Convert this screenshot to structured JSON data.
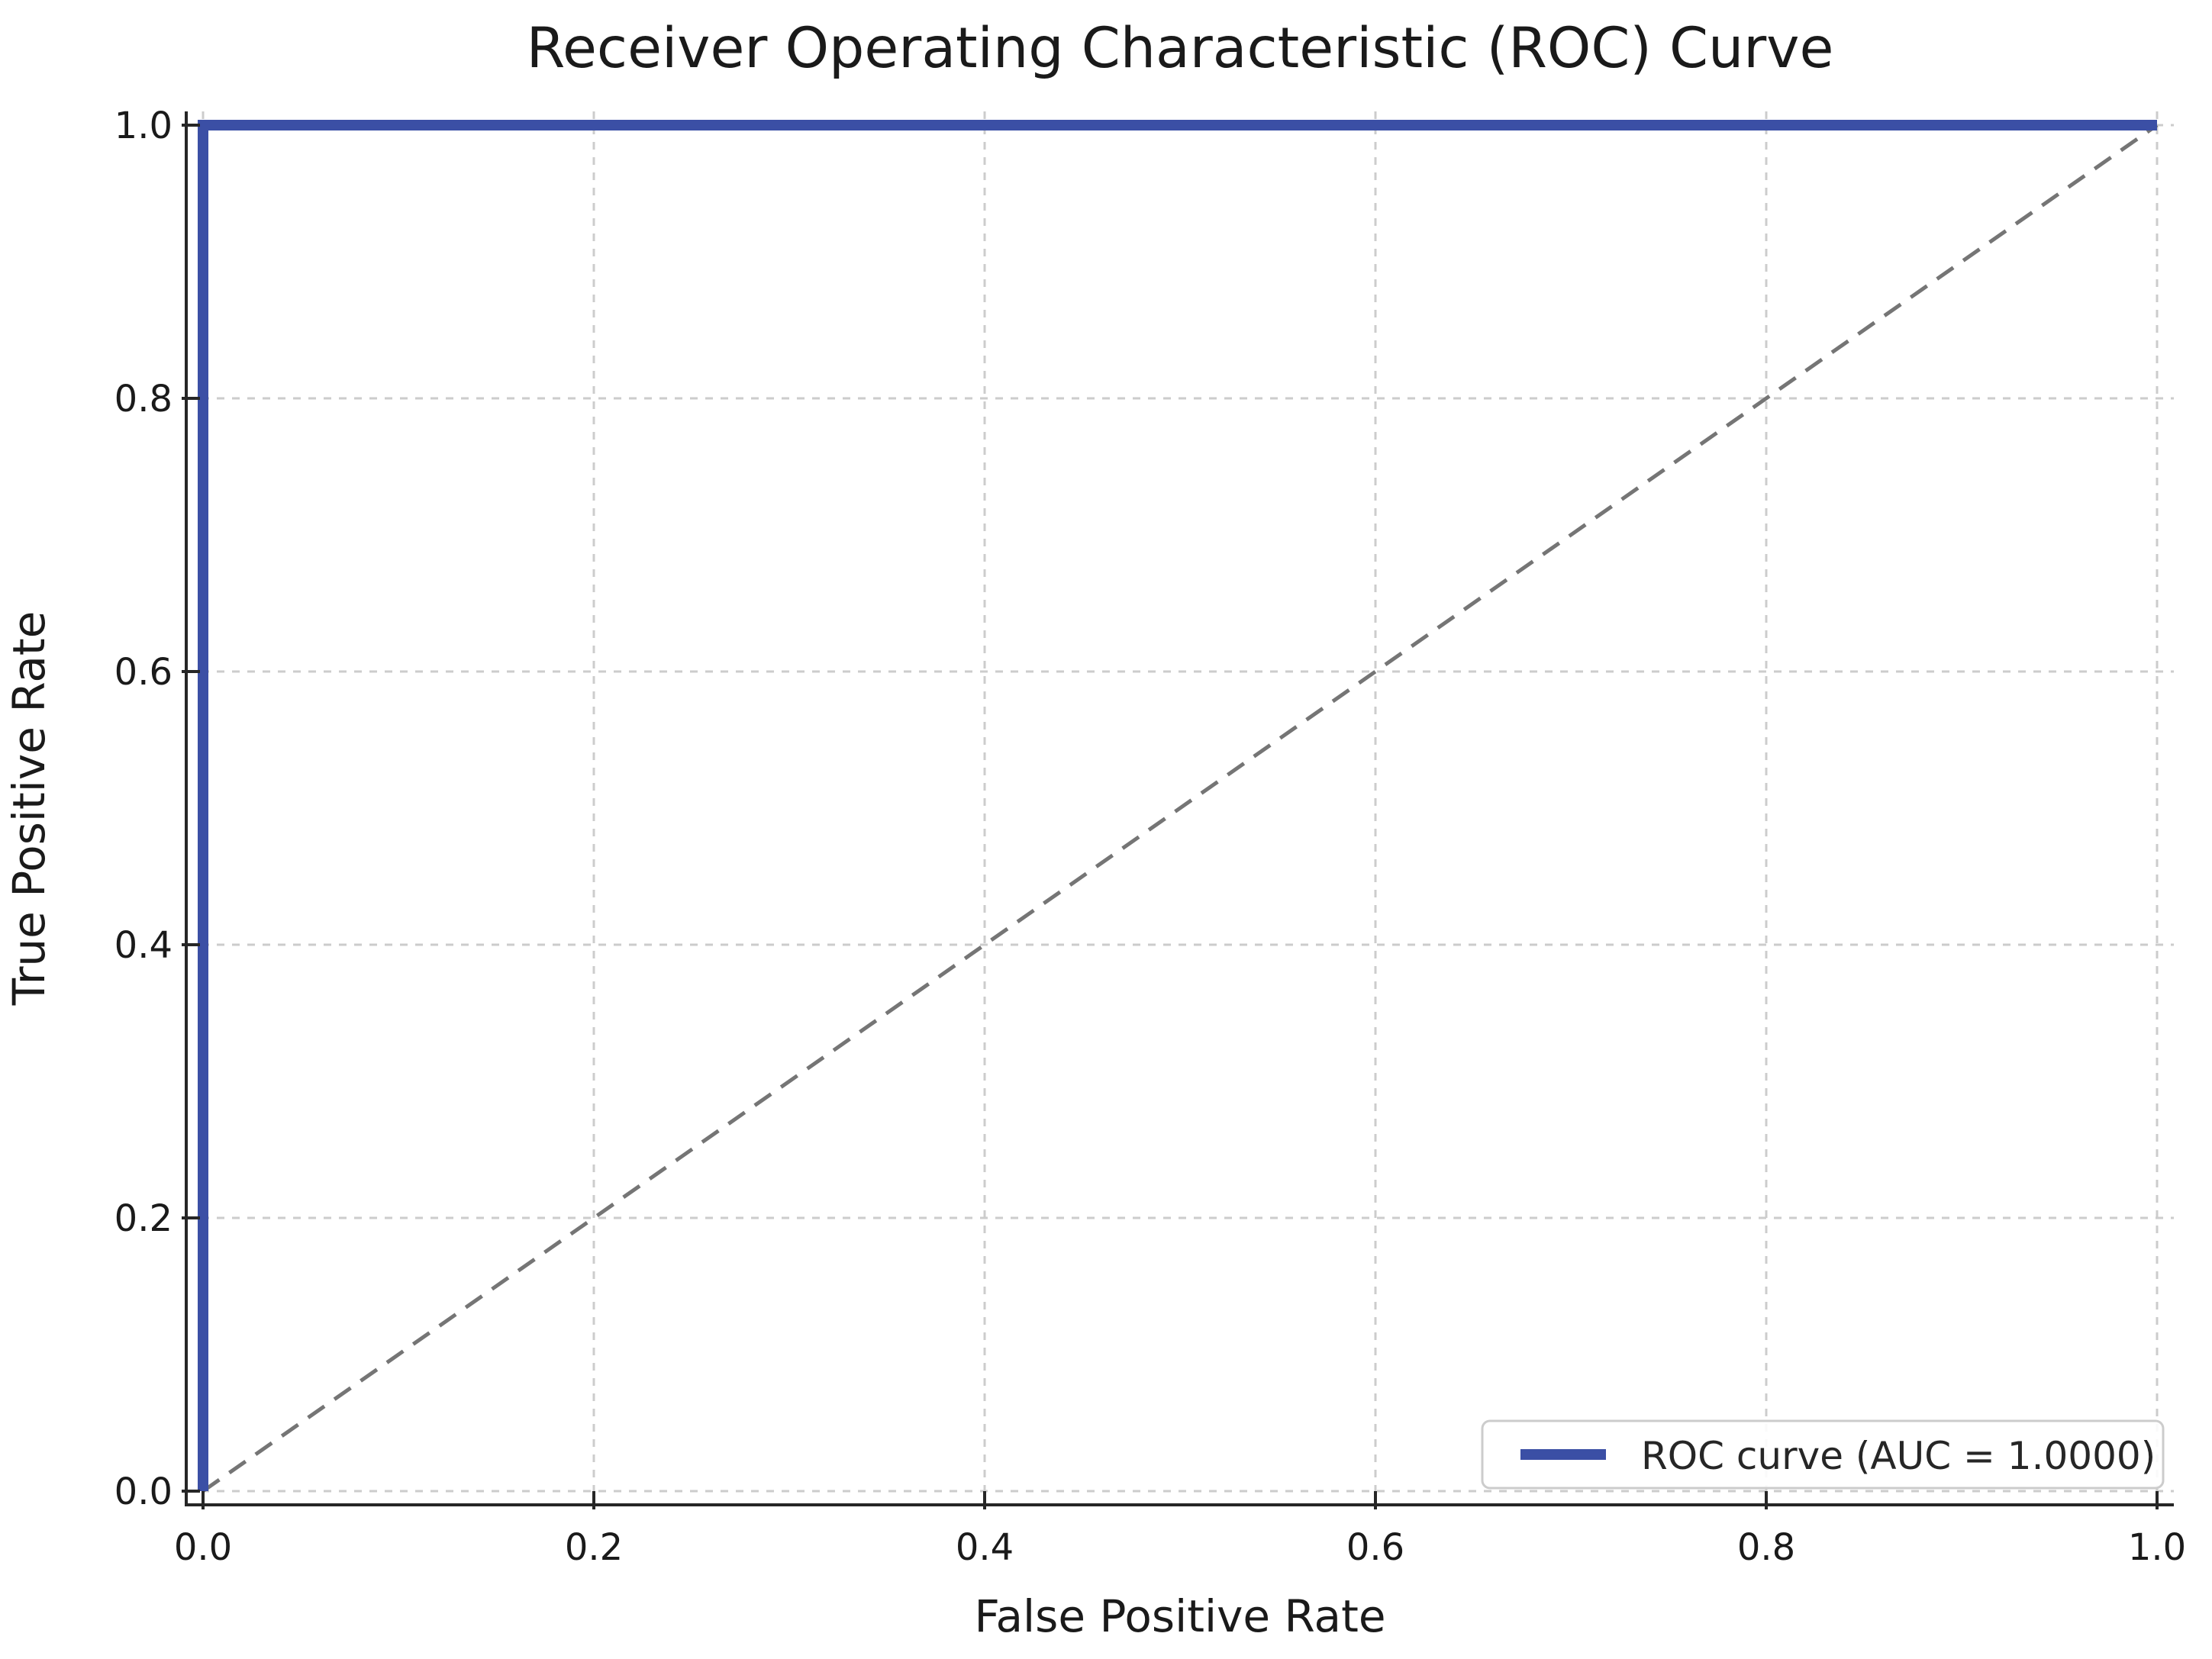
{
  "figure": {
    "title": "Receiver Operating Characteristic (ROC) Curve"
  },
  "chart_data": {
    "type": "line",
    "title": "Receiver Operating Characteristic (ROC) Curve",
    "xlabel": "False Positive Rate",
    "ylabel": "True Positive Rate",
    "xlim": [
      -0.009,
      1.009
    ],
    "ylim": [
      -0.01,
      1.01
    ],
    "grid": true,
    "grid_style": "dashed",
    "x_ticks": [
      0.0,
      0.2,
      0.4,
      0.6,
      0.8,
      1.0
    ],
    "y_ticks": [
      0.0,
      0.2,
      0.4,
      0.6,
      0.8,
      1.0
    ],
    "x_tick_labels": [
      "0.0",
      "0.2",
      "0.4",
      "0.6",
      "0.8",
      "1.0"
    ],
    "y_tick_labels": [
      "0.0",
      "0.2",
      "0.4",
      "0.6",
      "0.8",
      "1.0"
    ],
    "series": [
      {
        "name": "ROC curve (AUC = 1.0000)",
        "type": "step-line",
        "color": "#3b4fa5",
        "x": [
          0.0,
          0.0,
          1.0
        ],
        "y": [
          0.0,
          1.0,
          1.0
        ]
      }
    ],
    "reference_line": {
      "name": "chance diagonal",
      "style": "dashed",
      "color": "#757575",
      "x": [
        0.0,
        1.0
      ],
      "y": [
        0.0,
        1.0
      ]
    },
    "auc": "1.0000",
    "legend": {
      "position": "lower right",
      "entries": [
        {
          "label": "ROC curve (AUC = 1.0000)",
          "color": "#3b4fa5"
        }
      ]
    }
  },
  "colors": {
    "background": "#ffffff",
    "curve": "#3b4fa5",
    "diagonal": "#757575",
    "grid": "#cccccc",
    "spine": "#262626",
    "tick": "#262626",
    "text": "#1a1a1a",
    "legend_border": "#cccccc",
    "legend_background": "#ffffff"
  }
}
